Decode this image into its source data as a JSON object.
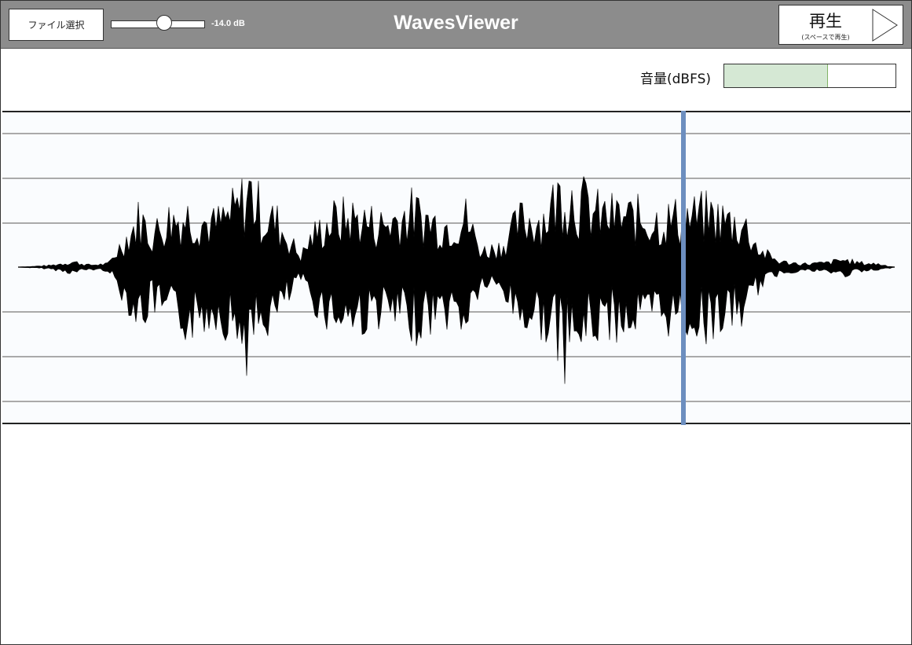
{
  "app": {
    "title": "WavesViewer"
  },
  "toolbar": {
    "file_button_label": "ファイル選択",
    "gain_db_label": "-14.0 dB",
    "gain_slider_fraction": 0.58,
    "play_button_label": "再生",
    "play_button_hint": "(スペースで再生)"
  },
  "volume": {
    "label": "音量(dBFS)",
    "level_fraction": 0.6
  },
  "waveform": {
    "playhead_fraction": 0.75,
    "colors": {
      "wave": "#000000",
      "playhead": "#6c8ebf",
      "gridline": "#aaaaaa",
      "meter_fill": "#d5e8d4"
    }
  },
  "icons": {
    "play": "play-triangle-icon"
  }
}
